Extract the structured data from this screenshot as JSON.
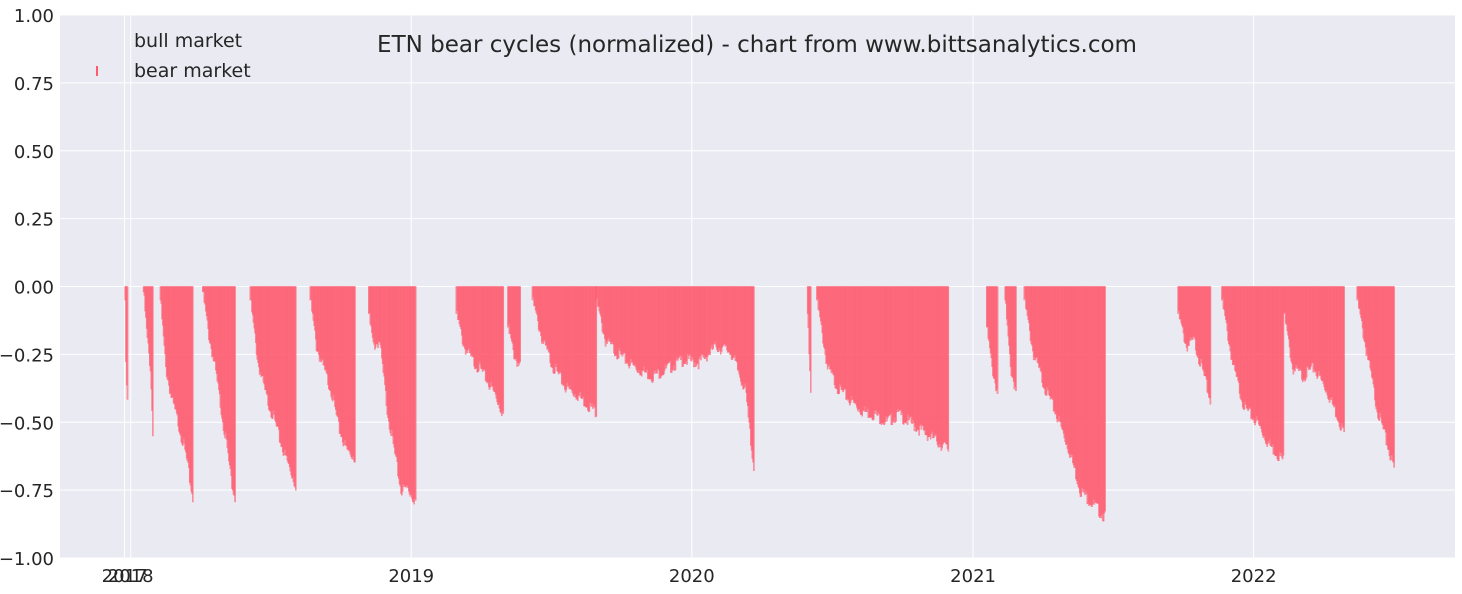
{
  "chart_data": {
    "type": "bar",
    "title": "ETN bear cycles (normalized)  - chart from www.bittsanalytics.com",
    "xlabel": "",
    "ylabel": "",
    "ylim": [
      -1.0,
      1.0
    ],
    "xlim": [
      "2017-10-01",
      "2022-09-20"
    ],
    "y_ticks": [
      "1.00",
      "0.75",
      "0.50",
      "0.25",
      "0.00",
      "−0.25",
      "−0.50",
      "−0.75",
      "−1.00"
    ],
    "y_tick_values": [
      1.0,
      0.75,
      0.5,
      0.25,
      0.0,
      -0.25,
      -0.5,
      -0.75,
      -1.0
    ],
    "x_ticks": [
      "2017",
      "2018",
      "2019",
      "2020",
      "2021",
      "2022"
    ],
    "x_tick_dates": [
      "2017-12-24",
      "2018-01-01",
      "2019-01-01",
      "2020-01-01",
      "2021-01-01",
      "2022-01-01"
    ],
    "grid": true,
    "legend_position": "top-left",
    "legend": [
      {
        "label": "bull market",
        "color": "#4d4d4d"
      },
      {
        "label": "bear market",
        "color": "#ff5a6e"
      }
    ],
    "colors": {
      "background": "#eaeaf2",
      "bear": "#ff5a6e",
      "grid": "#ffffff"
    },
    "series": [
      {
        "name": "bear market",
        "segments": [
          {
            "start": "2017-12-24",
            "end": "2017-12-27",
            "points": [
              [
                "2017-12-24",
                -0.05
              ],
              [
                "2017-12-25",
                -0.3
              ],
              [
                "2017-12-27",
                -0.43
              ]
            ]
          },
          {
            "start": "2018-01-17",
            "end": "2018-01-29",
            "points": [
              [
                "2018-01-17",
                -0.02
              ],
              [
                "2018-01-22",
                -0.2
              ],
              [
                "2018-01-26",
                -0.3
              ],
              [
                "2018-01-29",
                -0.53
              ]
            ]
          },
          {
            "start": "2018-02-08",
            "end": "2018-03-22",
            "points": [
              [
                "2018-02-08",
                -0.05
              ],
              [
                "2018-02-15",
                -0.3
              ],
              [
                "2018-02-23",
                -0.42
              ],
              [
                "2018-03-03",
                -0.5
              ],
              [
                "2018-03-13",
                -0.62
              ],
              [
                "2018-03-22",
                -0.78
              ]
            ]
          },
          {
            "start": "2018-04-04",
            "end": "2018-05-16",
            "points": [
              [
                "2018-04-04",
                -0.02
              ],
              [
                "2018-04-12",
                -0.18
              ],
              [
                "2018-04-20",
                -0.3
              ],
              [
                "2018-04-28",
                -0.45
              ],
              [
                "2018-05-06",
                -0.6
              ],
              [
                "2018-05-11",
                -0.72
              ],
              [
                "2018-05-16",
                -0.78
              ]
            ]
          },
          {
            "start": "2018-06-05",
            "end": "2018-08-03",
            "points": [
              [
                "2018-06-05",
                -0.05
              ],
              [
                "2018-06-15",
                -0.28
              ],
              [
                "2018-06-25",
                -0.4
              ],
              [
                "2018-07-05",
                -0.48
              ],
              [
                "2018-07-15",
                -0.58
              ],
              [
                "2018-07-25",
                -0.66
              ],
              [
                "2018-08-03",
                -0.73
              ]
            ]
          },
          {
            "start": "2018-08-22",
            "end": "2018-10-19",
            "points": [
              [
                "2018-08-22",
                -0.05
              ],
              [
                "2018-08-30",
                -0.22
              ],
              [
                "2018-09-08",
                -0.3
              ],
              [
                "2018-09-18",
                -0.38
              ],
              [
                "2018-09-28",
                -0.52
              ],
              [
                "2018-10-08",
                -0.6
              ],
              [
                "2018-10-19",
                -0.63
              ]
            ]
          },
          {
            "start": "2018-11-06",
            "end": "2019-01-06",
            "points": [
              [
                "2018-11-06",
                -0.1
              ],
              [
                "2018-11-12",
                -0.22
              ],
              [
                "2018-11-20",
                -0.2
              ],
              [
                "2018-11-30",
                -0.45
              ],
              [
                "2018-12-10",
                -0.62
              ],
              [
                "2018-12-18",
                -0.75
              ],
              [
                "2018-12-26",
                -0.74
              ],
              [
                "2019-01-06",
                -0.79
              ]
            ]
          },
          {
            "start": "2019-02-28",
            "end": "2019-04-30",
            "points": [
              [
                "2019-02-28",
                -0.1
              ],
              [
                "2019-03-10",
                -0.22
              ],
              [
                "2019-03-20",
                -0.27
              ],
              [
                "2019-03-30",
                -0.3
              ],
              [
                "2019-04-10",
                -0.35
              ],
              [
                "2019-04-20",
                -0.4
              ],
              [
                "2019-04-30",
                -0.47
              ]
            ]
          },
          {
            "start": "2019-05-06",
            "end": "2019-05-22",
            "points": [
              [
                "2019-05-06",
                -0.15
              ],
              [
                "2019-05-14",
                -0.25
              ],
              [
                "2019-05-22",
                -0.3
              ]
            ]
          },
          {
            "start": "2019-06-07",
            "end": "2019-08-29",
            "points": [
              [
                "2019-06-07",
                -0.05
              ],
              [
                "2019-06-20",
                -0.2
              ],
              [
                "2019-07-05",
                -0.3
              ],
              [
                "2019-07-20",
                -0.37
              ],
              [
                "2019-08-05",
                -0.4
              ],
              [
                "2019-08-20",
                -0.44
              ],
              [
                "2019-08-29",
                -0.46
              ]
            ]
          },
          {
            "start": "2019-08-29",
            "end": "2020-03-21",
            "points": [
              [
                "2019-08-29",
                -0.05
              ],
              [
                "2019-09-10",
                -0.2
              ],
              [
                "2019-10-01",
                -0.26
              ],
              [
                "2019-10-20",
                -0.3
              ],
              [
                "2019-11-10",
                -0.33
              ],
              [
                "2019-12-01",
                -0.3
              ],
              [
                "2019-12-20",
                -0.27
              ],
              [
                "2020-01-10",
                -0.28
              ],
              [
                "2020-02-01",
                -0.22
              ],
              [
                "2020-02-20",
                -0.24
              ],
              [
                "2020-03-10",
                -0.38
              ],
              [
                "2020-03-21",
                -0.67
              ]
            ]
          },
          {
            "start": "2020-05-30",
            "end": "2020-06-03",
            "points": [
              [
                "2020-05-30",
                -0.1
              ],
              [
                "2020-06-03",
                -0.4
              ]
            ]
          },
          {
            "start": "2020-06-11",
            "end": "2020-11-29",
            "points": [
              [
                "2020-06-11",
                -0.05
              ],
              [
                "2020-06-25",
                -0.3
              ],
              [
                "2020-07-10",
                -0.38
              ],
              [
                "2020-07-25",
                -0.42
              ],
              [
                "2020-08-10",
                -0.46
              ],
              [
                "2020-08-25",
                -0.47
              ],
              [
                "2020-09-10",
                -0.5
              ],
              [
                "2020-09-25",
                -0.47
              ],
              [
                "2020-10-10",
                -0.5
              ],
              [
                "2020-10-25",
                -0.53
              ],
              [
                "2020-11-10",
                -0.56
              ],
              [
                "2020-11-29",
                -0.6
              ]
            ]
          },
          {
            "start": "2021-01-18",
            "end": "2021-02-01",
            "points": [
              [
                "2021-01-18",
                -0.15
              ],
              [
                "2021-01-25",
                -0.3
              ],
              [
                "2021-02-01",
                -0.39
              ]
            ]
          },
          {
            "start": "2021-02-11",
            "end": "2021-02-25",
            "points": [
              [
                "2021-02-11",
                -0.05
              ],
              [
                "2021-02-18",
                -0.3
              ],
              [
                "2021-02-25",
                -0.38
              ]
            ]
          },
          {
            "start": "2021-03-08",
            "end": "2021-06-21",
            "points": [
              [
                "2021-03-08",
                -0.05
              ],
              [
                "2021-03-20",
                -0.25
              ],
              [
                "2021-04-05",
                -0.38
              ],
              [
                "2021-04-20",
                -0.48
              ],
              [
                "2021-05-05",
                -0.6
              ],
              [
                "2021-05-20",
                -0.75
              ],
              [
                "2021-06-05",
                -0.8
              ],
              [
                "2021-06-21",
                -0.85
              ]
            ]
          },
          {
            "start": "2021-09-24",
            "end": "2021-11-05",
            "points": [
              [
                "2021-09-24",
                -0.1
              ],
              [
                "2021-10-05",
                -0.22
              ],
              [
                "2021-10-15",
                -0.2
              ],
              [
                "2021-10-25",
                -0.3
              ],
              [
                "2021-11-05",
                -0.42
              ]
            ]
          },
          {
            "start": "2021-11-20",
            "end": "2022-02-08",
            "points": [
              [
                "2021-11-20",
                -0.05
              ],
              [
                "2021-12-05",
                -0.3
              ],
              [
                "2021-12-20",
                -0.45
              ],
              [
                "2022-01-05",
                -0.5
              ],
              [
                "2022-01-20",
                -0.58
              ],
              [
                "2022-02-08",
                -0.64
              ]
            ]
          },
          {
            "start": "2022-02-09",
            "end": "2022-04-28",
            "points": [
              [
                "2022-02-09",
                -0.1
              ],
              [
                "2022-02-20",
                -0.3
              ],
              [
                "2022-03-05",
                -0.33
              ],
              [
                "2022-03-20",
                -0.3
              ],
              [
                "2022-04-05",
                -0.38
              ],
              [
                "2022-04-20",
                -0.48
              ],
              [
                "2022-04-28",
                -0.54
              ]
            ]
          },
          {
            "start": "2022-05-15",
            "end": "2022-07-02",
            "points": [
              [
                "2022-05-15",
                -0.05
              ],
              [
                "2022-05-28",
                -0.25
              ],
              [
                "2022-06-10",
                -0.45
              ],
              [
                "2022-06-20",
                -0.55
              ],
              [
                "2022-07-02",
                -0.67
              ]
            ]
          }
        ]
      }
    ]
  }
}
